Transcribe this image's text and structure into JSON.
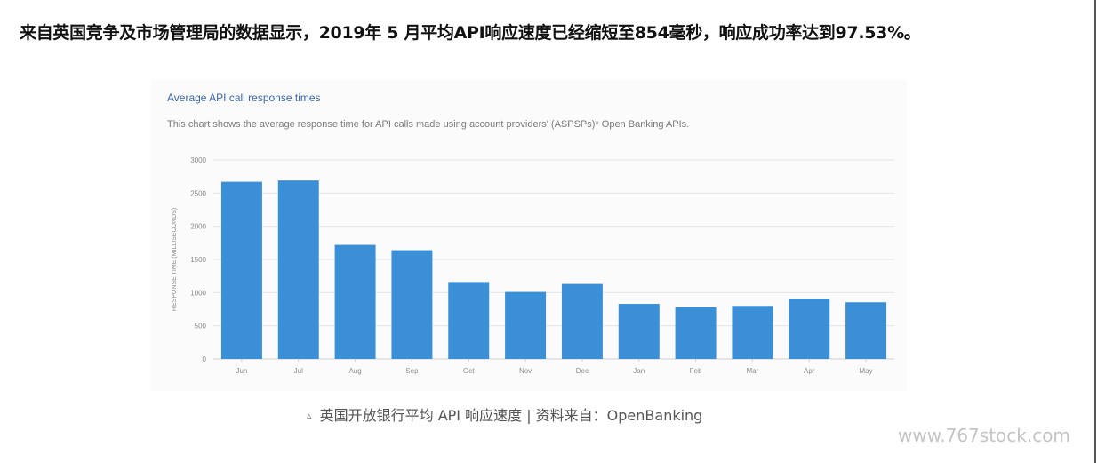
{
  "headline": "来自英国竞争及市场管理局的数据显示，2019年 5 月平均API响应速度已经缩短至854毫秒，响应成功率达到97.53%。",
  "caption": {
    "marker": "▵",
    "text": "英国开放银行平均 API 响应速度 | 资料来自：OpenBanking"
  },
  "watermark": "www.767stock.com",
  "chart_data": {
    "type": "bar",
    "title": "Average API call response times",
    "subtitle": "This chart shows the average response time for API calls made using account providers' (ASPSPs)* Open Banking APIs.",
    "xlabel": "",
    "ylabel": "RESPONSE TIME (MILLISECONDS)",
    "categories": [
      "Jun",
      "Jul",
      "Aug",
      "Sep",
      "Oct",
      "Nov",
      "Dec",
      "Jan",
      "Feb",
      "Mar",
      "Apr",
      "May"
    ],
    "values": [
      2670,
      2690,
      1720,
      1640,
      1160,
      1010,
      1130,
      830,
      780,
      800,
      910,
      854
    ],
    "ylim": [
      0,
      3000
    ],
    "yticks": [
      0,
      500,
      1000,
      1500,
      2000,
      2500,
      3000
    ],
    "grid": true,
    "legend": "none",
    "bar_color": "#3b8fd6"
  }
}
